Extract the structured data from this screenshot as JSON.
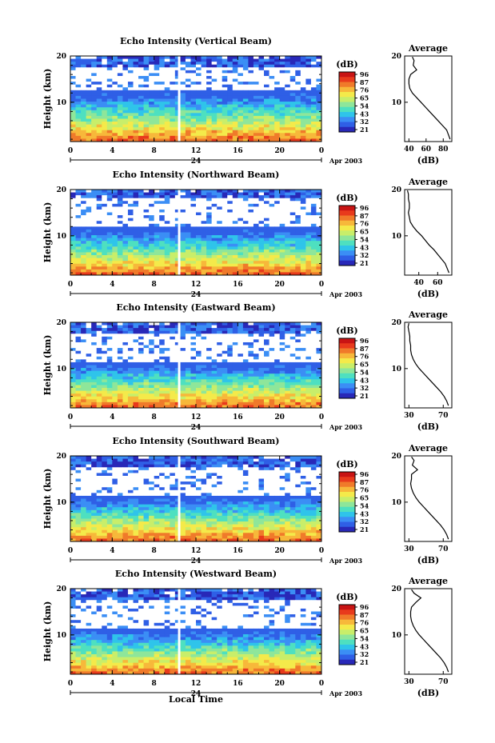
{
  "figure": {
    "xlabel": "Local Time",
    "date_label": "Apr 2003",
    "day_label": "24",
    "colorbar_unit": "(dB)",
    "average_title": "Average",
    "average_xlabel": "(dB)",
    "colorscale": [
      "#2828b8",
      "#2f5fe6",
      "#3b8ef5",
      "#2fc4ea",
      "#4ee0c0",
      "#8ee69a",
      "#c8ee6a",
      "#f4ea4a",
      "#f7b83a",
      "#f07a2a",
      "#e83a1c",
      "#c81414"
    ],
    "gap_color": "#ffffff"
  },
  "chart_data": [
    {
      "type": "heatmap",
      "title": "Echo Intensity (Vertical Beam)",
      "xlabel": "Local Time",
      "ylabel": "Height (km)",
      "x_ticks": [
        "0",
        "4",
        "8",
        "12",
        "16",
        "20",
        "0"
      ],
      "y_ticks": [
        "10",
        "20"
      ],
      "xlim": [
        0,
        24
      ],
      "ylim": [
        1.5,
        20
      ],
      "colorbar_ticks": [
        "96",
        "87",
        "76",
        "65",
        "54",
        "43",
        "32",
        "21"
      ],
      "gap_height_km": [
        12.3,
        17.6
      ],
      "data_gap_time_h": 10.4,
      "average_profile": {
        "xlim": [
          35,
          90
        ],
        "x_ticks": [
          "40",
          "60",
          "80"
        ],
        "y_ticks": [
          "10",
          "20"
        ],
        "height_km": [
          2,
          3,
          4,
          5,
          6,
          7,
          8,
          9,
          10,
          11,
          12,
          13,
          14,
          15,
          16,
          17,
          18,
          19,
          19.8
        ],
        "dB": [
          88,
          86,
          84,
          79,
          74,
          69,
          64,
          59,
          54,
          49,
          44,
          41,
          40,
          40,
          42,
          49,
          45,
          46,
          44
        ]
      }
    },
    {
      "type": "heatmap",
      "title": "Echo Intensity (Northward Beam)",
      "xlabel": "Local Time",
      "ylabel": "Height (km)",
      "x_ticks": [
        "0",
        "4",
        "8",
        "12",
        "16",
        "20",
        "0"
      ],
      "y_ticks": [
        "10",
        "20"
      ],
      "xlim": [
        0,
        24
      ],
      "ylim": [
        1.5,
        20
      ],
      "colorbar_ticks": [
        "96",
        "87",
        "76",
        "65",
        "54",
        "43",
        "32",
        "21"
      ],
      "gap_height_km": [
        11.7,
        18.2
      ],
      "data_gap_time_h": 10.4,
      "average_profile": {
        "xlim": [
          25,
          75
        ],
        "x_ticks": [
          "40",
          "60"
        ],
        "y_ticks": [
          "10",
          "20"
        ],
        "height_km": [
          2,
          3,
          4,
          5,
          6,
          7,
          8,
          9,
          10,
          11,
          12,
          13,
          14,
          15,
          16,
          17,
          18,
          19,
          19.8
        ],
        "dB": [
          72,
          70,
          68,
          64,
          60,
          56,
          51,
          47,
          43,
          38,
          34,
          31,
          30,
          29,
          30,
          30,
          29,
          29,
          28
        ]
      }
    },
    {
      "type": "heatmap",
      "title": "Echo Intensity (Eastward Beam)",
      "xlabel": "Local Time",
      "ylabel": "Height (km)",
      "x_ticks": [
        "0",
        "4",
        "8",
        "12",
        "16",
        "20",
        "0"
      ],
      "y_ticks": [
        "10",
        "20"
      ],
      "xlim": [
        0,
        24
      ],
      "ylim": [
        1.5,
        20
      ],
      "colorbar_ticks": [
        "96",
        "87",
        "76",
        "65",
        "54",
        "43",
        "32",
        "21"
      ],
      "gap_height_km": [
        11.5,
        17.6
      ],
      "data_gap_time_h": 10.4,
      "average_profile": {
        "xlim": [
          25,
          80
        ],
        "x_ticks": [
          "30",
          "70"
        ],
        "y_ticks": [
          "10",
          "20"
        ],
        "height_km": [
          2,
          3,
          4,
          5,
          6,
          7,
          8,
          9,
          10,
          11,
          12,
          13,
          14,
          15,
          16,
          17,
          18,
          19,
          19.8
        ],
        "dB": [
          76,
          74,
          71,
          67,
          62,
          57,
          52,
          47,
          42,
          38,
          35,
          33,
          32,
          32,
          31,
          31,
          30,
          29,
          30
        ]
      }
    },
    {
      "type": "heatmap",
      "title": "Echo Intensity (Southward Beam)",
      "xlabel": "Local Time",
      "ylabel": "Height (km)",
      "x_ticks": [
        "0",
        "4",
        "8",
        "12",
        "16",
        "20",
        "0"
      ],
      "y_ticks": [
        "10",
        "20"
      ],
      "xlim": [
        0,
        24
      ],
      "ylim": [
        1.5,
        20
      ],
      "colorbar_ticks": [
        "96",
        "87",
        "76",
        "65",
        "54",
        "43",
        "32",
        "21"
      ],
      "gap_height_km": [
        11.5,
        17.8
      ],
      "data_gap_time_h": 10.4,
      "average_profile": {
        "xlim": [
          25,
          80
        ],
        "x_ticks": [
          "30",
          "70"
        ],
        "y_ticks": [
          "10",
          "20"
        ],
        "height_km": [
          2,
          3,
          4,
          5,
          6,
          7,
          8,
          9,
          10,
          11,
          12,
          13,
          14,
          15,
          16,
          17,
          18,
          19,
          19.8
        ],
        "dB": [
          76,
          74,
          71,
          67,
          62,
          57,
          52,
          47,
          42,
          38,
          35,
          33,
          32,
          33,
          33,
          40,
          34,
          36,
          33
        ]
      }
    },
    {
      "type": "heatmap",
      "title": "Echo Intensity (Westward Beam)",
      "xlabel": "Local Time",
      "ylabel": "Height (km)",
      "x_ticks": [
        "0",
        "4",
        "8",
        "12",
        "16",
        "20",
        "0"
      ],
      "y_ticks": [
        "10",
        "20"
      ],
      "xlim": [
        0,
        24
      ],
      "ylim": [
        1.5,
        20
      ],
      "colorbar_ticks": [
        "96",
        "87",
        "76",
        "65",
        "54",
        "43",
        "32",
        "21"
      ],
      "gap_height_km": [
        11.4,
        17.6
      ],
      "data_gap_time_h": 10.4,
      "average_profile": {
        "xlim": [
          25,
          80
        ],
        "x_ticks": [
          "30",
          "70"
        ],
        "y_ticks": [
          "10",
          "20"
        ],
        "height_km": [
          2,
          3,
          4,
          5,
          6,
          7,
          8,
          9,
          10,
          11,
          12,
          13,
          14,
          15,
          16,
          17,
          18,
          19,
          19.8
        ],
        "dB": [
          76,
          74,
          71,
          67,
          62,
          57,
          52,
          47,
          42,
          38,
          35,
          33,
          32,
          32,
          33,
          38,
          44,
          36,
          33
        ]
      }
    }
  ]
}
